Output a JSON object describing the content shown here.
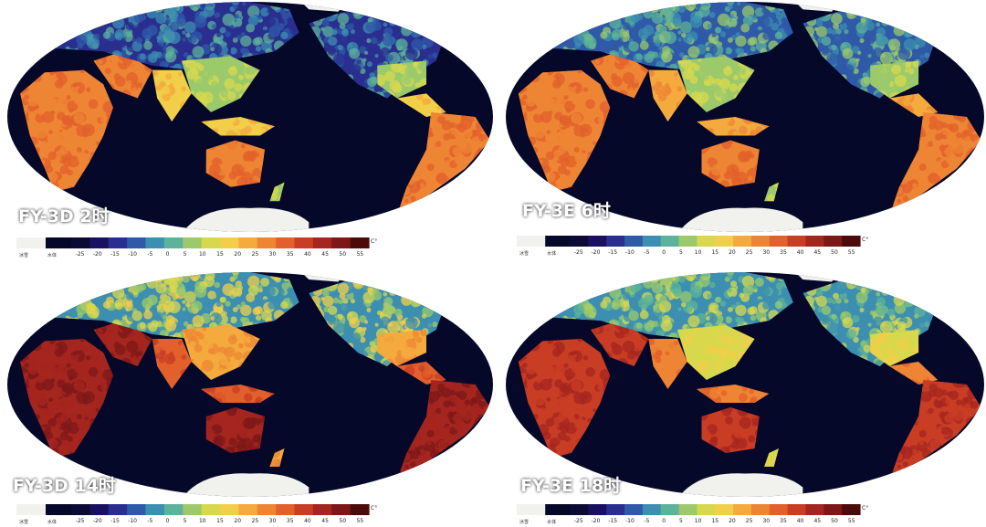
{
  "panels": [
    {
      "id": "p1",
      "label": "FY-3D 2时",
      "mode": "night"
    },
    {
      "id": "p2",
      "label": "FY-3E 6时",
      "mode": "morning"
    },
    {
      "id": "p3",
      "label": "FY-3D 14时",
      "mode": "day"
    },
    {
      "id": "p4",
      "label": "FY-3E 18时",
      "mode": "evening"
    }
  ],
  "legend": {
    "unit": "C°",
    "snow_label": "冰雪",
    "water_label": "水体",
    "ticks": [
      "-25",
      "-20",
      "-15",
      "-10",
      "-5",
      "0",
      "5",
      "10",
      "15",
      "20",
      "25",
      "30",
      "35",
      "40",
      "45",
      "50",
      "55"
    ],
    "colors": [
      "#0a0a35",
      "#1a1060",
      "#2a2f8f",
      "#2f5aa8",
      "#3c8fb0",
      "#5cb39a",
      "#9bc96b",
      "#d8d84e",
      "#f2cf48",
      "#f4aa3d",
      "#ee8534",
      "#e2602b",
      "#c83d24",
      "#a5261f",
      "#7d1818",
      "#4d0a0a"
    ],
    "ocean_color": "#06082a",
    "snow_color": "#f1f1ee"
  }
}
